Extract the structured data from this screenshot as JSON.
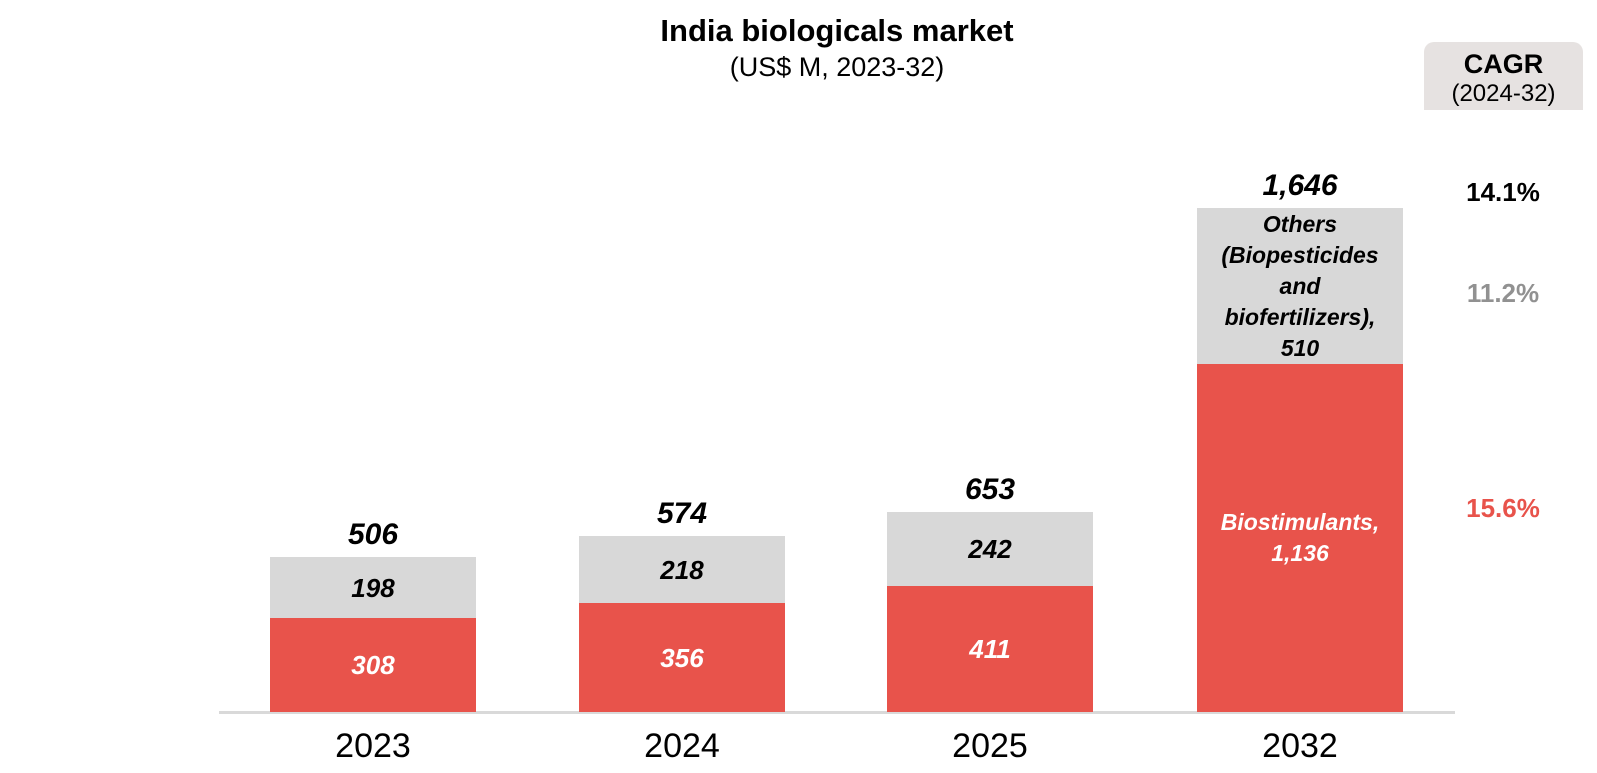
{
  "title": "India biologicals market",
  "subtitle": "(US$ M, 2023-32)",
  "cagr": {
    "header": "CAGR",
    "period": "(2024-32)",
    "values": [
      {
        "label": "14.1%",
        "color": "#000000"
      },
      {
        "label": "11.2%",
        "color": "#919191"
      },
      {
        "label": "15.6%",
        "color": "#E8534B"
      }
    ]
  },
  "chart_data": {
    "type": "bar",
    "stacked": true,
    "title": "India biologicals market",
    "subtitle": "(US$ M, 2023-32)",
    "xlabel": "",
    "ylabel": "US$ M",
    "ylim": [
      0,
      1700
    ],
    "grid": false,
    "legend": "labels-inside-bars",
    "categories": [
      "2023",
      "2024",
      "2025",
      "2032"
    ],
    "series": [
      {
        "name": "Biostimulants",
        "color": "#E8534B",
        "values": [
          308,
          356,
          411,
          1136
        ]
      },
      {
        "name": "Others (Biopesticides and biofertilizers)",
        "color": "#D8D8D8",
        "values": [
          198,
          218,
          242,
          510
        ]
      }
    ],
    "totals": [
      506,
      574,
      653,
      1646
    ],
    "total_labels": [
      "506",
      "574",
      "653",
      "1,646"
    ],
    "segment_labels": {
      "biostimulants": [
        "308",
        "356",
        "411",
        "Biostimulants,\n1,136"
      ],
      "others": [
        "198",
        "218",
        "242",
        "Others\n(Biopesticides\nand\nbiofertilizers),\n510"
      ]
    },
    "cagr_2024_32": {
      "total": "14.1%",
      "others": "11.2%",
      "biostimulants": "15.6%"
    }
  }
}
